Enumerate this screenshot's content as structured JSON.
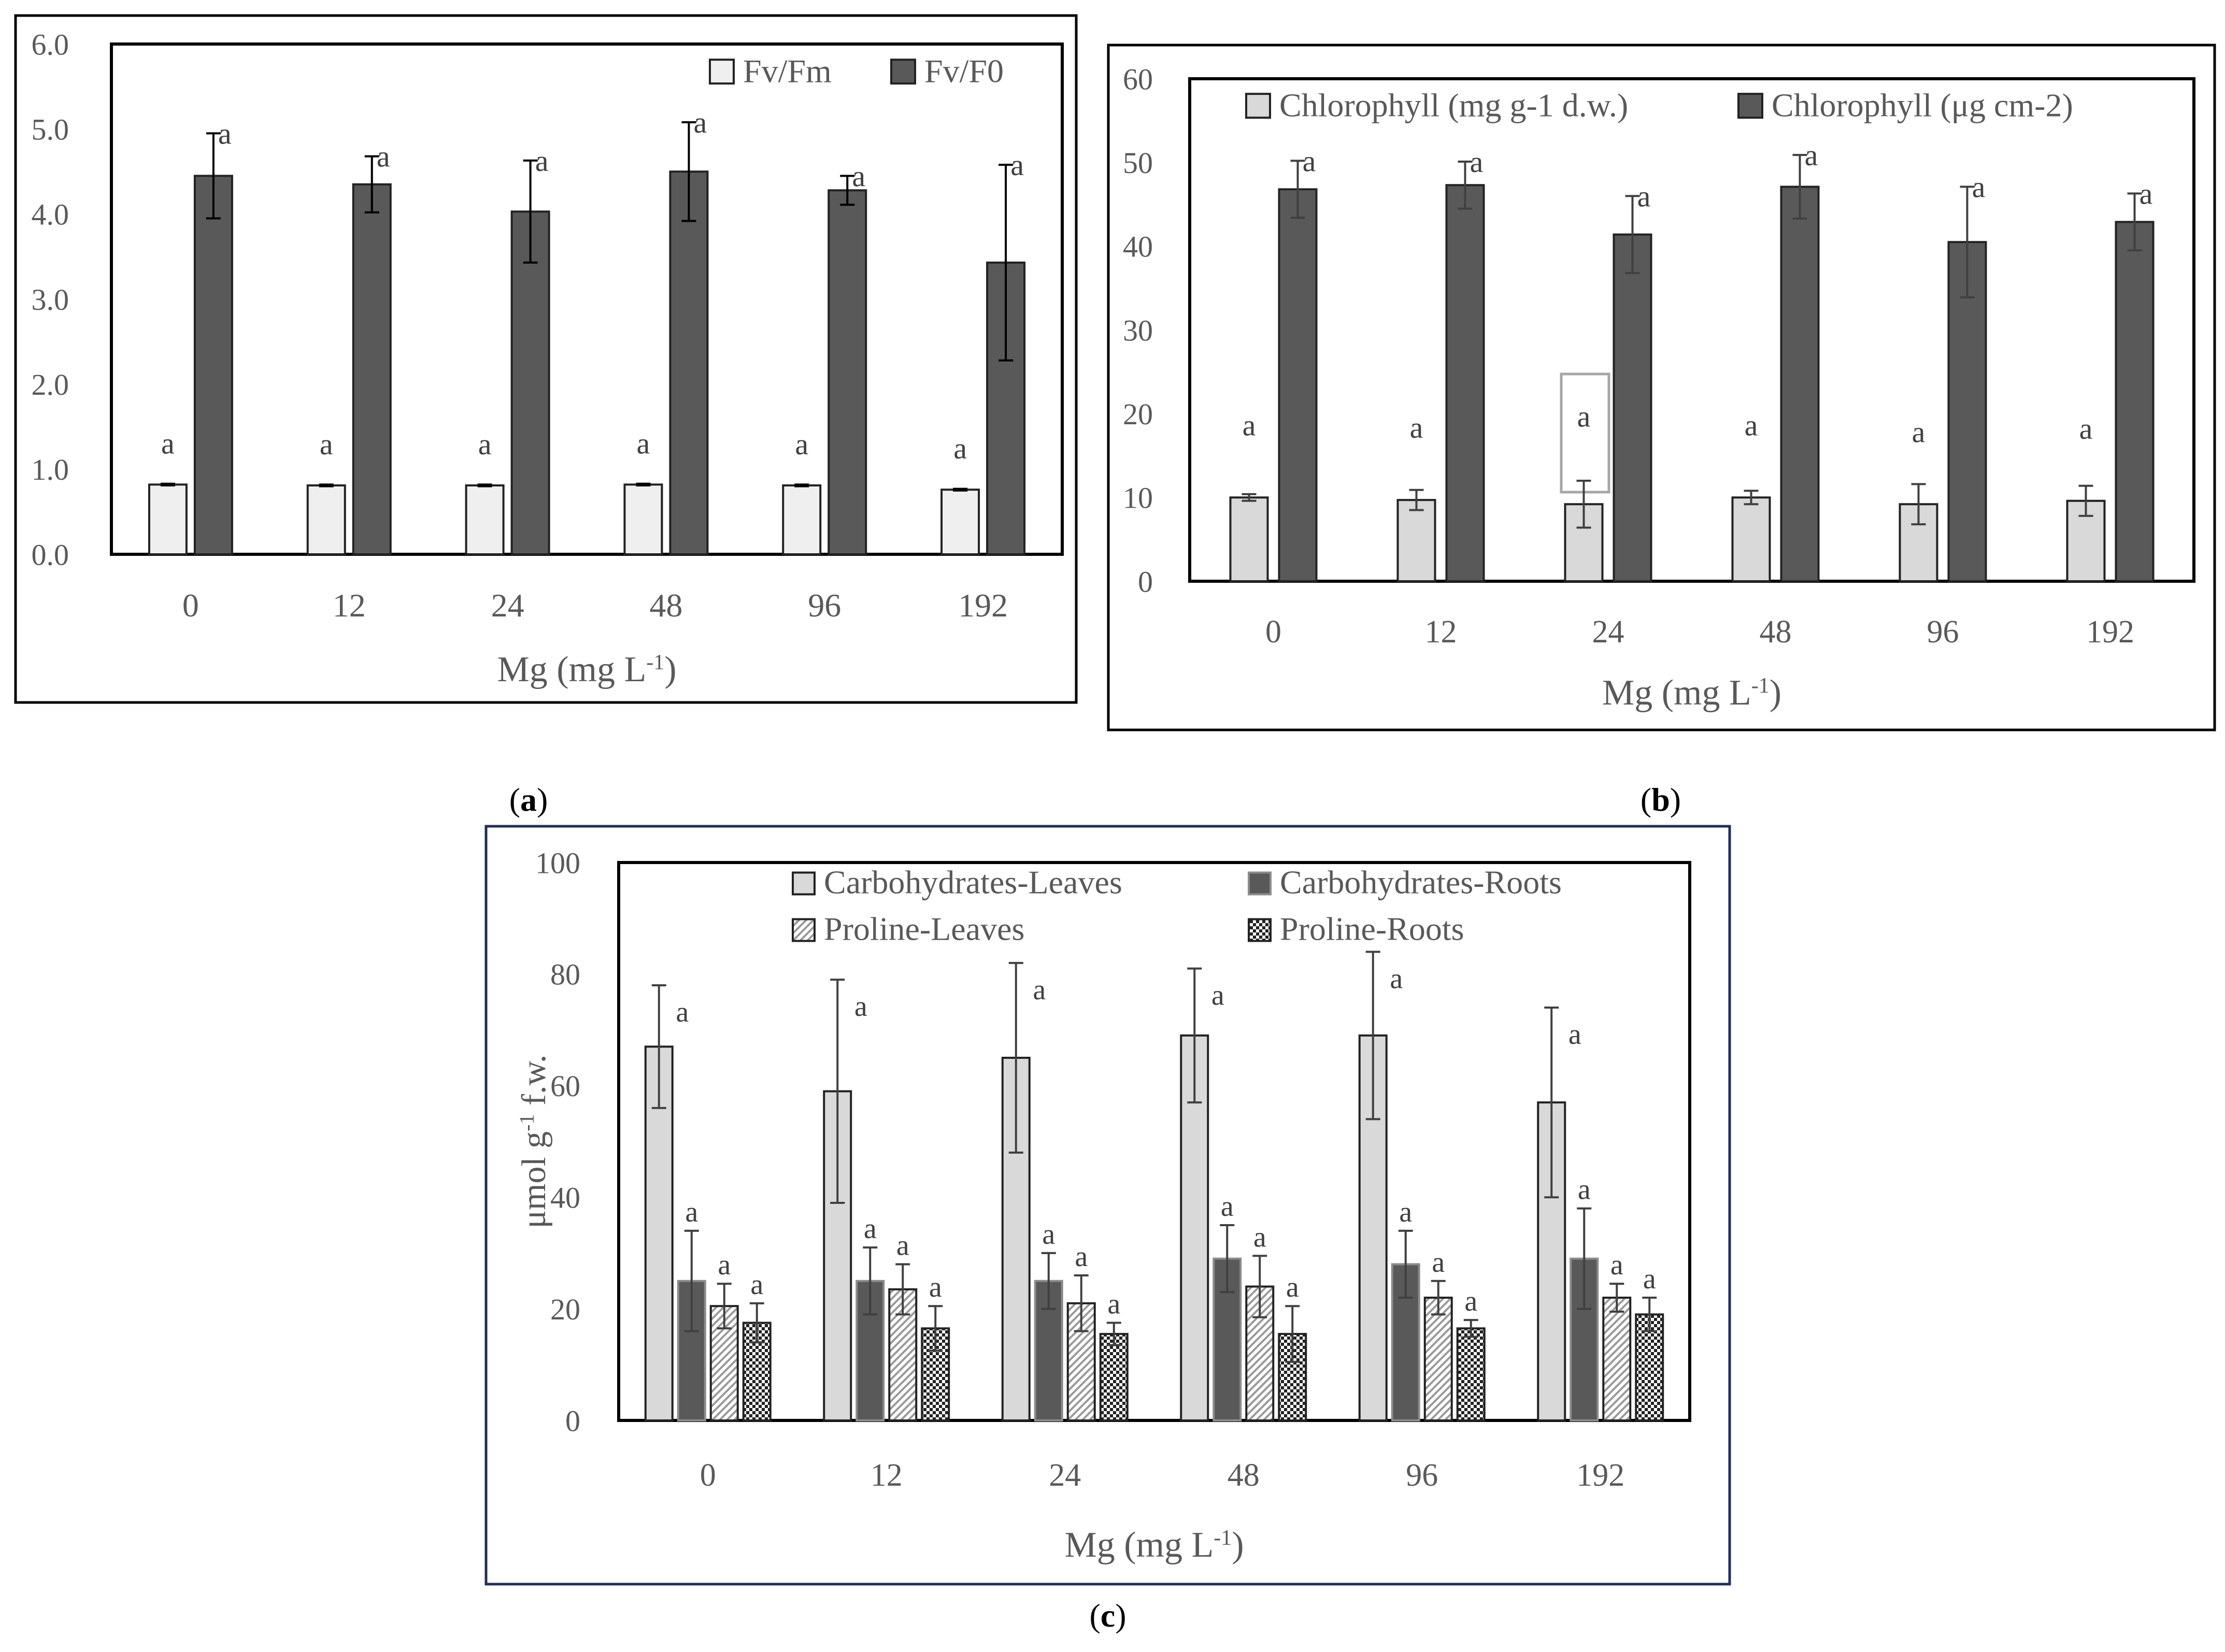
{
  "figure": {
    "panel_labels": [
      "a",
      "b",
      "c"
    ]
  },
  "colors": {
    "light_bar": "#efefef",
    "light_bar_b": "#d9d9d9",
    "dark_bar": "#595959",
    "axis_text": "#595959",
    "frame": "#000000",
    "panel_c_frame": "#1f2d5c",
    "grey_edge": "#8c8c8c"
  },
  "chart_data": [
    {
      "panel": "a",
      "type": "bar",
      "title": "",
      "xlabel": "Mg (mg L-1)",
      "xlabel_parts": {
        "main": "Mg (mg L",
        "sup": "-1",
        "tail": ")"
      },
      "ylabel": "",
      "ylim": [
        0,
        6
      ],
      "yticks": [
        "0.0",
        "1.0",
        "2.0",
        "3.0",
        "4.0",
        "5.0",
        "6.0"
      ],
      "categories": [
        "0",
        "12",
        "24",
        "48",
        "96",
        "192"
      ],
      "legend_position": "top-right",
      "series": [
        {
          "name": "Fv/Fm",
          "style": "light",
          "values": [
            0.82,
            0.81,
            0.81,
            0.82,
            0.81,
            0.76
          ],
          "errors": [
            0.01,
            0.01,
            0.01,
            0.01,
            0.01,
            0.01
          ],
          "sig": [
            "a",
            "a",
            "a",
            "a",
            "a",
            "a"
          ]
        },
        {
          "name": "Fv/F0",
          "style": "dark",
          "values": [
            4.45,
            4.35,
            4.03,
            4.5,
            4.28,
            3.43
          ],
          "errors": [
            0.5,
            0.33,
            0.6,
            0.58,
            0.17,
            1.15
          ],
          "sig": [
            "a",
            "a",
            "a",
            "a",
            "a",
            "a"
          ]
        }
      ]
    },
    {
      "panel": "b",
      "type": "bar",
      "title": "",
      "xlabel": "Mg (mg L-1)",
      "xlabel_parts": {
        "main": "Mg (mg L",
        "sup": "-1",
        "tail": ")"
      },
      "ylabel": "",
      "ylim": [
        0,
        60
      ],
      "yticks": [
        "0",
        "10",
        "20",
        "30",
        "40",
        "50",
        "60"
      ],
      "categories": [
        "0",
        "12",
        "24",
        "48",
        "96",
        "192"
      ],
      "legend_position": "top",
      "series": [
        {
          "name": "Chlorophyll (mg g-1 d.w.)",
          "style": "light",
          "values": [
            10,
            9.7,
            9.2,
            10,
            9.2,
            9.6
          ],
          "errors": [
            0.4,
            1.2,
            2.8,
            0.8,
            2.4,
            1.8
          ],
          "sig": [
            "a",
            "a",
            "a",
            "a",
            "a",
            "a"
          ]
        },
        {
          "name": "Chlorophyll (μg cm-2)",
          "style": "dark",
          "values": [
            46.8,
            47.3,
            41.4,
            47.1,
            40.5,
            42.9
          ],
          "errors": [
            3.4,
            2.8,
            4.6,
            3.8,
            6.6,
            3.4
          ],
          "sig": [
            "a",
            "a",
            "a",
            "a",
            "a",
            "a"
          ]
        }
      ]
    },
    {
      "panel": "c",
      "type": "bar",
      "title": "",
      "xlabel": "Mg (mg L-1)",
      "xlabel_parts": {
        "main": "Mg (mg L",
        "sup": "-1",
        "tail": ")"
      },
      "ylabel": "μmol g-1 f.w.",
      "ylabel_parts": {
        "main": "μmol g",
        "sup": "-1",
        "tail": " f.w."
      },
      "ylim": [
        0,
        100
      ],
      "yticks": [
        "0",
        "20",
        "40",
        "60",
        "80",
        "100"
      ],
      "categories": [
        "0",
        "12",
        "24",
        "48",
        "96",
        "192"
      ],
      "legend_position": "top",
      "series": [
        {
          "name": "Carbohydrates-Leaves",
          "style": "light",
          "values": [
            67,
            59,
            65,
            69,
            69,
            57
          ],
          "errors": [
            11,
            20,
            17,
            12,
            15,
            17
          ],
          "sig": [
            "a",
            "a",
            "a",
            "a",
            "a",
            "a"
          ]
        },
        {
          "name": "Carbohydrates-Roots",
          "style": "dark",
          "values": [
            25,
            25,
            25,
            29,
            28,
            29
          ],
          "errors": [
            9,
            6,
            5,
            6,
            6,
            9
          ],
          "sig": [
            "a",
            "a",
            "a",
            "a",
            "a",
            "a"
          ]
        },
        {
          "name": "Proline-Leaves",
          "style": "hatch",
          "values": [
            20.5,
            23.5,
            21,
            24,
            22,
            22
          ],
          "errors": [
            4,
            4.5,
            5,
            5.5,
            3,
            2.5
          ],
          "sig": [
            "a",
            "a",
            "a",
            "a",
            "a",
            "a"
          ]
        },
        {
          "name": "Proline-Roots",
          "style": "dots",
          "values": [
            17.5,
            16.5,
            15.5,
            15.5,
            16.5,
            19
          ],
          "errors": [
            3.5,
            4,
            2,
            5,
            1.5,
            3
          ],
          "sig": [
            "a",
            "a",
            "a",
            "a",
            "a",
            "a"
          ]
        }
      ]
    }
  ]
}
